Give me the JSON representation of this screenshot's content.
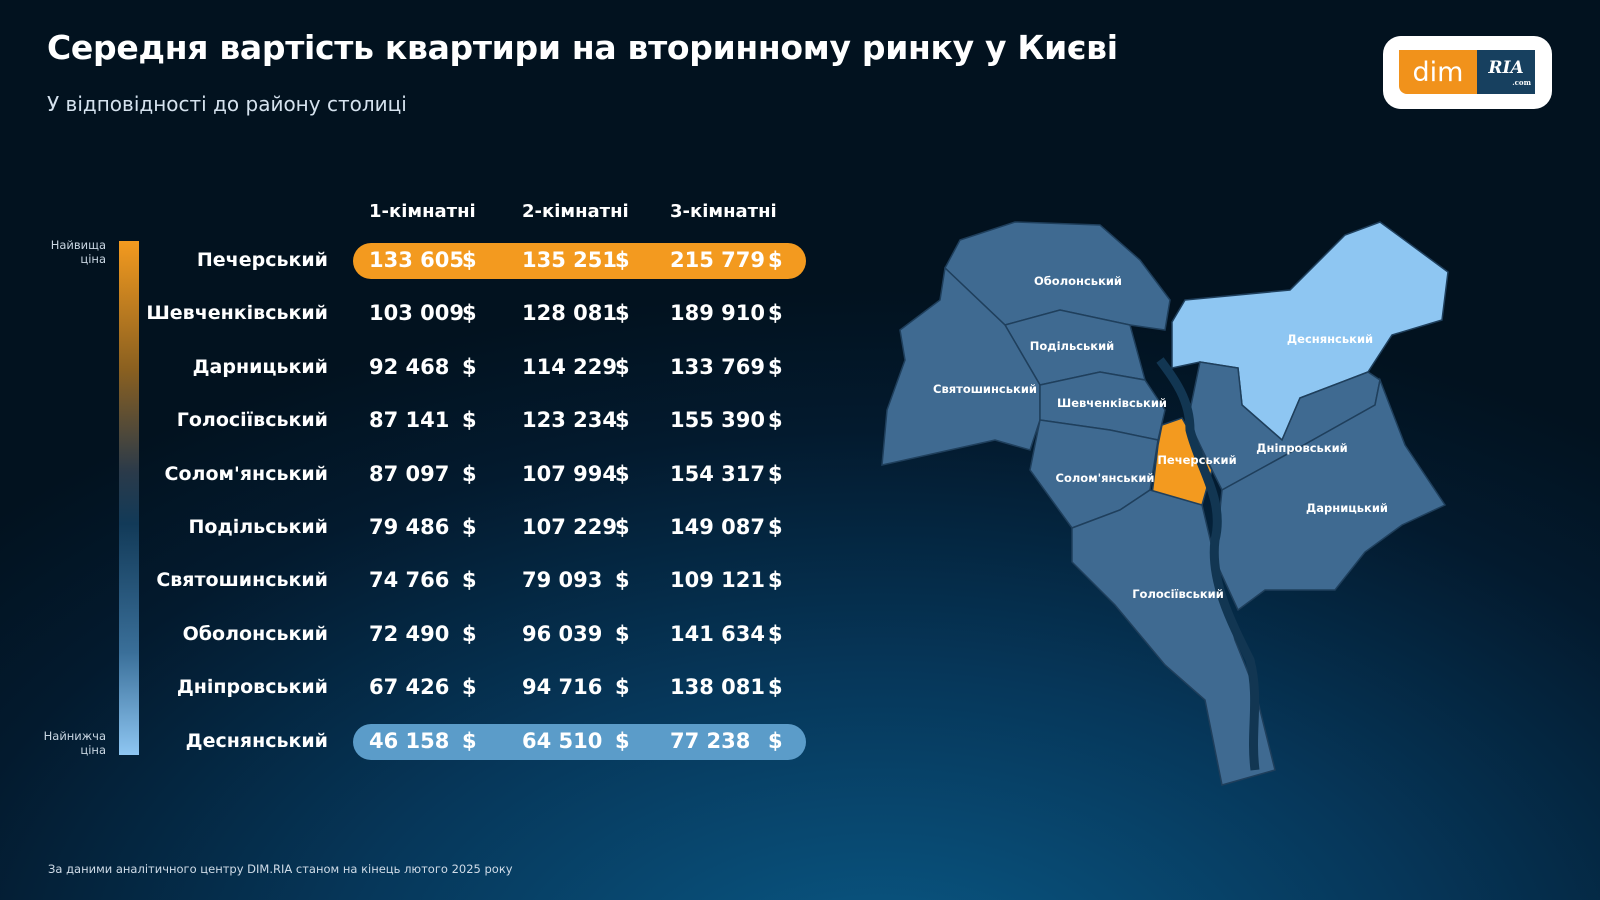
{
  "header": {
    "title": "Середня вартість квартири на вторинному ринку у Києві",
    "subtitle": "У відповідності до району столиці"
  },
  "logo": {
    "left": "dim",
    "right": "RIA",
    "domain": ".com"
  },
  "scale": {
    "high": "Найвища ціна",
    "low": "Найнижча ціна"
  },
  "colors": {
    "highest": "#f39a1f",
    "lowest": "#5b9cc9",
    "map_default": "#3f6a91",
    "map_lowest": "#8ec6f2",
    "map_highest": "#f39a1f"
  },
  "footnote": "За даними аналітичного центру DIM.RIA станом на кінець лютого 2025 року",
  "chart_data": {
    "type": "table",
    "currency": "$",
    "columns": [
      "1-кімнатні",
      "2-кімнатні",
      "3-кімнатні"
    ],
    "rows": [
      {
        "district": "Печерський",
        "values": [
          "133 605",
          "135 251",
          "215 779"
        ],
        "highlight": "highest"
      },
      {
        "district": "Шевченківський",
        "values": [
          "103 009",
          "128 081",
          "189 910"
        ]
      },
      {
        "district": "Дарницький",
        "values": [
          "92 468",
          "114 229",
          "133 769"
        ]
      },
      {
        "district": "Голосіївський",
        "values": [
          "87 141",
          "123 234",
          "155 390"
        ]
      },
      {
        "district": "Солом'янський",
        "values": [
          "87 097",
          "107 994",
          "154 317"
        ]
      },
      {
        "district": "Подільський",
        "values": [
          "79 486",
          "107 229",
          "149 087"
        ]
      },
      {
        "district": "Святошинський",
        "values": [
          "74 766",
          "79 093",
          "109 121"
        ]
      },
      {
        "district": "Оболонський",
        "values": [
          "72 490",
          "96 039",
          "141 634"
        ]
      },
      {
        "district": "Дніпровський",
        "values": [
          "67 426",
          "94 716",
          "138 081"
        ]
      },
      {
        "district": "Деснянський",
        "values": [
          "46 158",
          "64 510",
          "77 238"
        ],
        "highlight": "lowest"
      }
    ]
  },
  "map": {
    "labels": [
      "Оболонський",
      "Подільський",
      "Святошинський",
      "Шевченківський",
      "Солом'янський",
      "Печерський",
      "Голосіївський",
      "Деснянський",
      "Дніпровський",
      "Дарницький"
    ]
  }
}
